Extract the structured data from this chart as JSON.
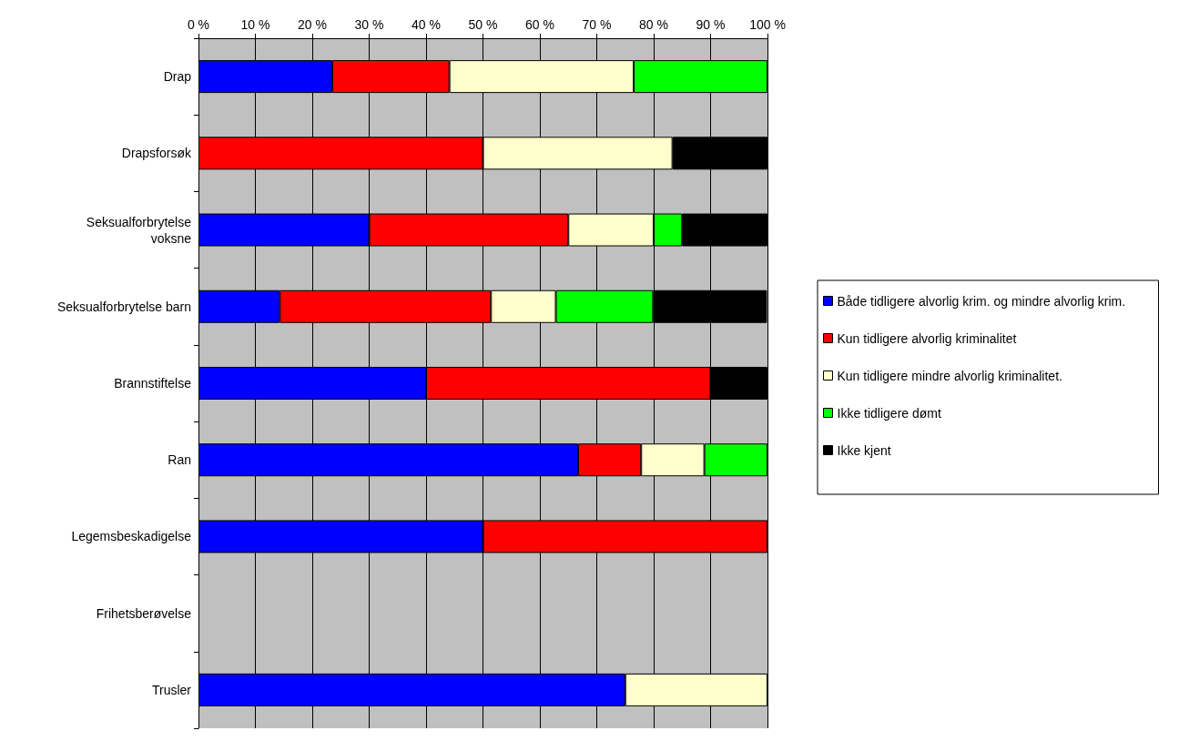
{
  "chart_data": {
    "type": "bar",
    "orientation": "horizontal",
    "stacked": true,
    "categories": [
      "Drap",
      "Drapsforsøk",
      "Seksualforbrytelse\nvoksne",
      "Seksualforbrytelse barn",
      "Brannstiftelse",
      "Ran",
      "Legemsbeskadigelse",
      "Frihetsberøvelse",
      "Trusler"
    ],
    "series": [
      {
        "name": "Både tidligere alvorlig krim. og mindre alvorlig krim.",
        "color": "#0000ff",
        "values": [
          23.5,
          null,
          30,
          14.3,
          40,
          66.7,
          50,
          null,
          75
        ]
      },
      {
        "name": "Kun tidligere alvorlig kriminalitet",
        "color": "#ff0000",
        "values": [
          20.6,
          50,
          35,
          37.1,
          50,
          11.1,
          50,
          null,
          null
        ]
      },
      {
        "name": "Kun tidligere mindre alvorlig kriminalitet.",
        "color": "#ffffcc",
        "values": [
          32.4,
          33.3,
          15,
          11.4,
          null,
          11.1,
          null,
          null,
          25
        ]
      },
      {
        "name": "Ikke tidligere dømt",
        "color": "#00ff00",
        "values": [
          23.5,
          null,
          5,
          17.1,
          null,
          11.1,
          null,
          null,
          null
        ]
      },
      {
        "name": "Ikke kjent",
        "color": "#000000",
        "values": [
          null,
          16.7,
          15,
          20,
          10,
          null,
          null,
          null,
          null
        ]
      }
    ],
    "xlim": [
      0,
      100
    ],
    "xticks": [
      {
        "value": 0,
        "label": "0 %"
      },
      {
        "value": 10,
        "label": "10 %"
      },
      {
        "value": 20,
        "label": "20 %"
      },
      {
        "value": 30,
        "label": "30 %"
      },
      {
        "value": 40,
        "label": "40 %"
      },
      {
        "value": 50,
        "label": "50 %"
      },
      {
        "value": 60,
        "label": "60 %"
      },
      {
        "value": 70,
        "label": "70 %"
      },
      {
        "value": 80,
        "label": "80 %"
      },
      {
        "value": 90,
        "label": "90 %"
      },
      {
        "value": 100,
        "label": "100 %"
      }
    ],
    "grid": "x",
    "legend": "right"
  }
}
